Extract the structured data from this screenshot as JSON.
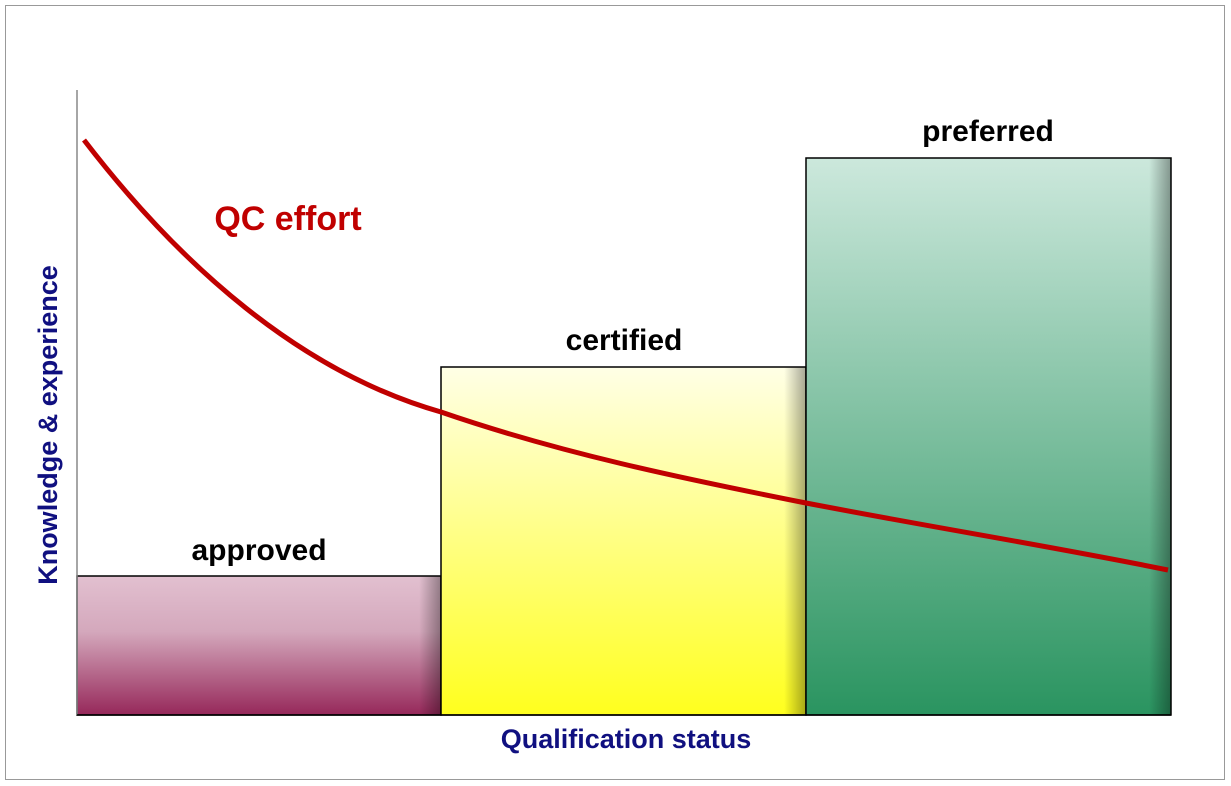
{
  "axes": {
    "y_label": "Knowledge & experience",
    "x_label": "Qualification status"
  },
  "bars": [
    {
      "label": "approved"
    },
    {
      "label": "certified"
    },
    {
      "label": "preferred"
    }
  ],
  "curve": {
    "label": "QC effort"
  }
}
